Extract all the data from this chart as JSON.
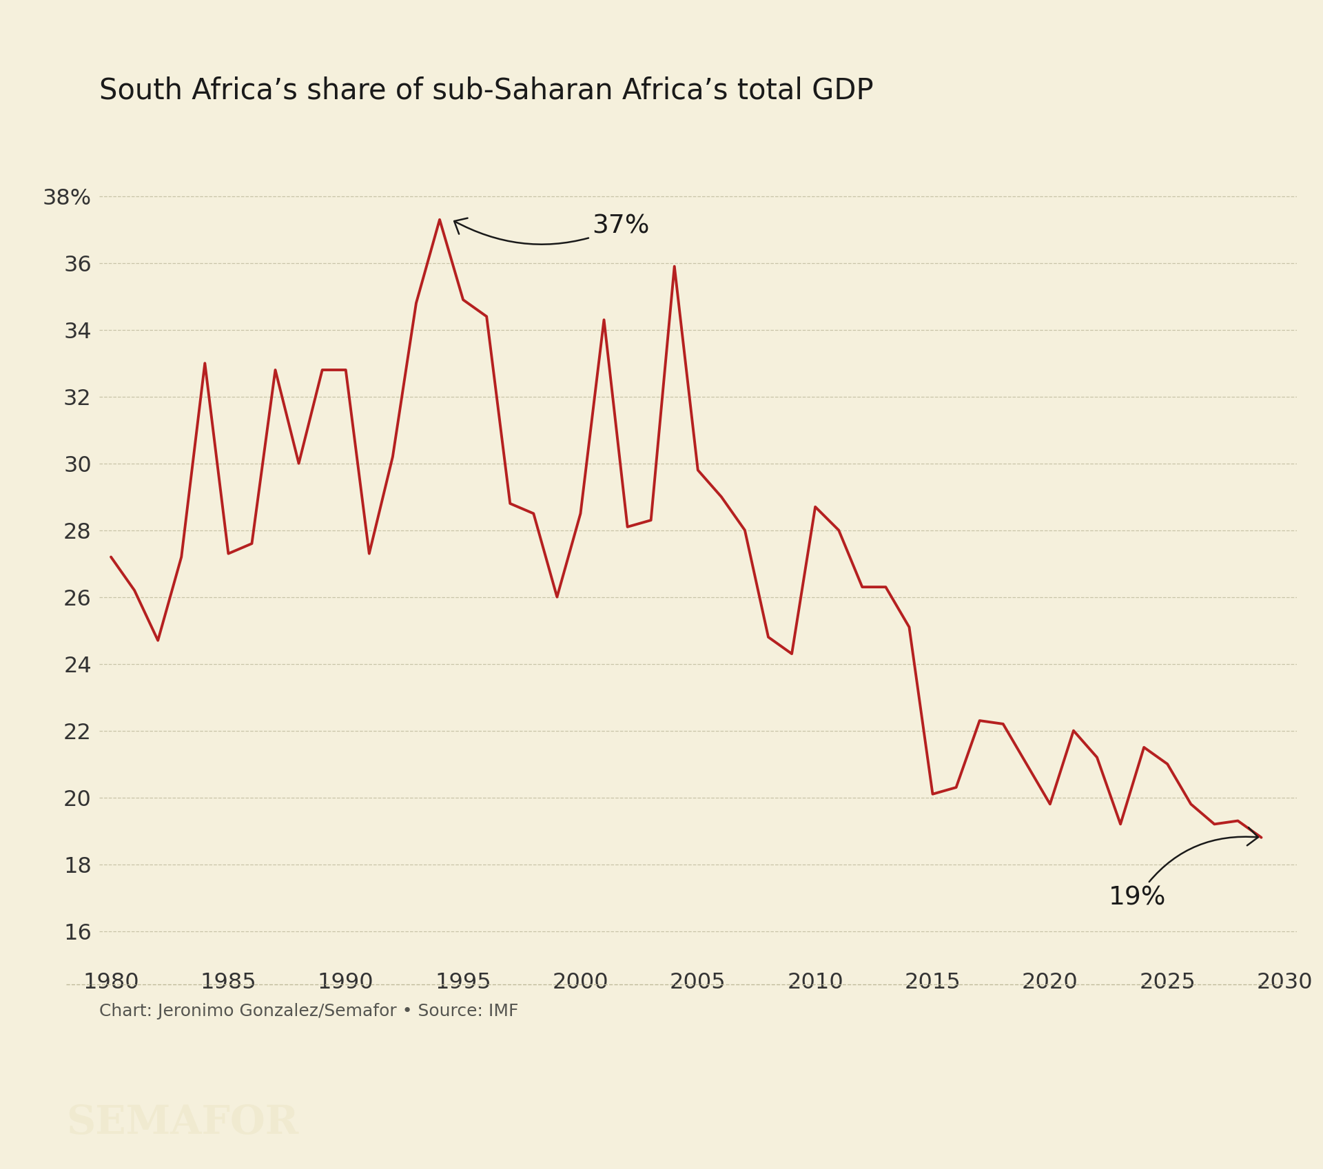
{
  "title": "South Africa’s share of sub-Saharan Africa’s total GDP",
  "background_color": "#f5f0dc",
  "line_color": "#b52020",
  "line_width": 2.8,
  "xlim": [
    1979.5,
    2030.5
  ],
  "ylim": [
    15.0,
    39.5
  ],
  "yticks": [
    16,
    18,
    20,
    22,
    24,
    26,
    28,
    30,
    32,
    34,
    36,
    38
  ],
  "ytick_labels": [
    "16",
    "18",
    "20",
    "22",
    "24",
    "26",
    "28",
    "30",
    "32",
    "34",
    "36",
    "38%"
  ],
  "xticks": [
    1980,
    1985,
    1990,
    1995,
    2000,
    2005,
    2010,
    2015,
    2020,
    2025,
    2030
  ],
  "footer_text": "Chart: Jeronimo Gonzalez/Semafor • Source: IMF",
  "semafor_label": "SEMAFOR",
  "years": [
    1980,
    1981,
    1982,
    1983,
    1984,
    1985,
    1986,
    1987,
    1988,
    1989,
    1990,
    1991,
    1992,
    1993,
    1994,
    1995,
    1996,
    1997,
    1998,
    1999,
    2000,
    2001,
    2002,
    2003,
    2004,
    2005,
    2006,
    2007,
    2008,
    2009,
    2010,
    2011,
    2012,
    2013,
    2014,
    2015,
    2016,
    2017,
    2018,
    2019,
    2020,
    2021,
    2022,
    2023,
    2024,
    2025,
    2026,
    2027,
    2028,
    2029
  ],
  "values": [
    27.2,
    26.2,
    24.7,
    27.2,
    33.0,
    27.3,
    27.6,
    32.8,
    30.0,
    32.8,
    32.8,
    27.3,
    30.2,
    34.8,
    37.3,
    34.9,
    34.4,
    28.8,
    28.5,
    26.0,
    28.5,
    34.3,
    28.1,
    28.3,
    35.9,
    29.8,
    29.0,
    28.0,
    24.8,
    24.3,
    28.7,
    28.0,
    26.3,
    26.3,
    25.1,
    20.1,
    20.3,
    22.3,
    22.2,
    21.0,
    19.8,
    22.0,
    21.2,
    19.2,
    21.5,
    21.0,
    19.8,
    19.2,
    19.3,
    18.8
  ]
}
